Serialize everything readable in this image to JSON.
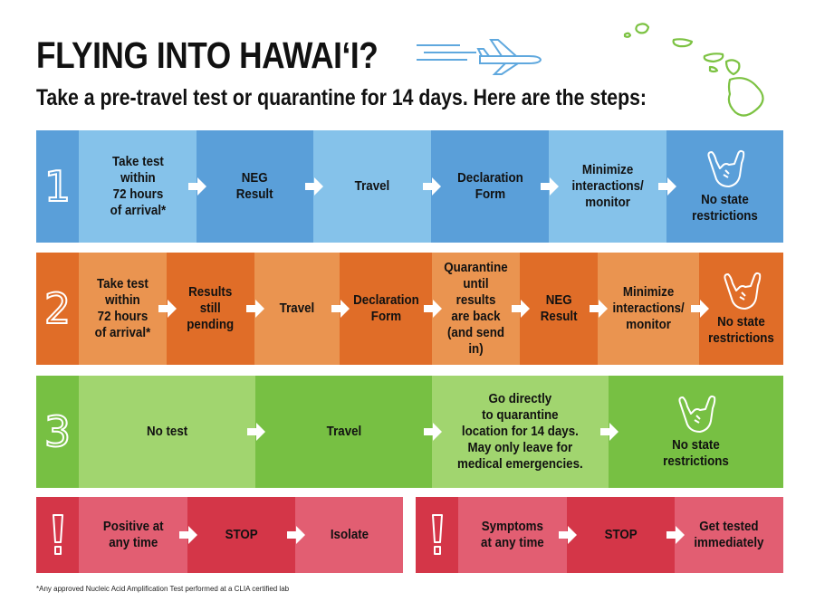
{
  "header": {
    "title": "FLYING INTO HAWAI‘I?",
    "subtitle": "Take a pre-travel test or quarantine for 14 days. Here are the steps:"
  },
  "colors": {
    "blue_dark": "#5a9fd9",
    "blue_light": "#85c2ea",
    "orange_dark": "#e06d28",
    "orange_light": "#ea9450",
    "green_dark": "#77c043",
    "green_light": "#a1d56f",
    "red_dark": "#d43648",
    "red_light": "#e25e72",
    "island_green": "#7cc242"
  },
  "icons": {
    "plane": "airplane-icon",
    "islands": "hawaii-islands-map",
    "hand": "shaka-hand-icon",
    "arrow": "right-arrow-icon",
    "alert": "exclamation-icon"
  },
  "rows": [
    {
      "number": "1",
      "steps": [
        "Take test\nwithin\n72 hours\nof arrival*",
        "NEG\nResult",
        "Travel",
        "Declaration\nForm",
        "Minimize\ninteractions/\nmonitor",
        "No state\nrestrictions"
      ]
    },
    {
      "number": "2",
      "steps": [
        "Take test\nwithin\n72 hours\nof arrival*",
        "Results\nstill\npending",
        "Travel",
        "Declaration\nForm",
        "Quarantine\nuntil\nresults\nare back\n(and send in)",
        "NEG\nResult",
        "Minimize\ninteractions/\nmonitor",
        "No state\nrestrictions"
      ]
    },
    {
      "number": "3",
      "steps": [
        "No test",
        "Travel",
        "Go directly\nto quarantine\nlocation for 14 days.\nMay only leave for\nmedical emergencies.",
        "No state\nrestrictions"
      ]
    }
  ],
  "alerts": [
    {
      "mark": "!",
      "steps": [
        "Positive at\nany time",
        "STOP",
        "Isolate"
      ]
    },
    {
      "mark": "!",
      "steps": [
        "Symptoms\nat any time",
        "STOP",
        "Get tested\nimmediately"
      ]
    }
  ],
  "footnote": "*Any approved Nucleic Acid Amplification Test performed at a CLIA certified lab"
}
